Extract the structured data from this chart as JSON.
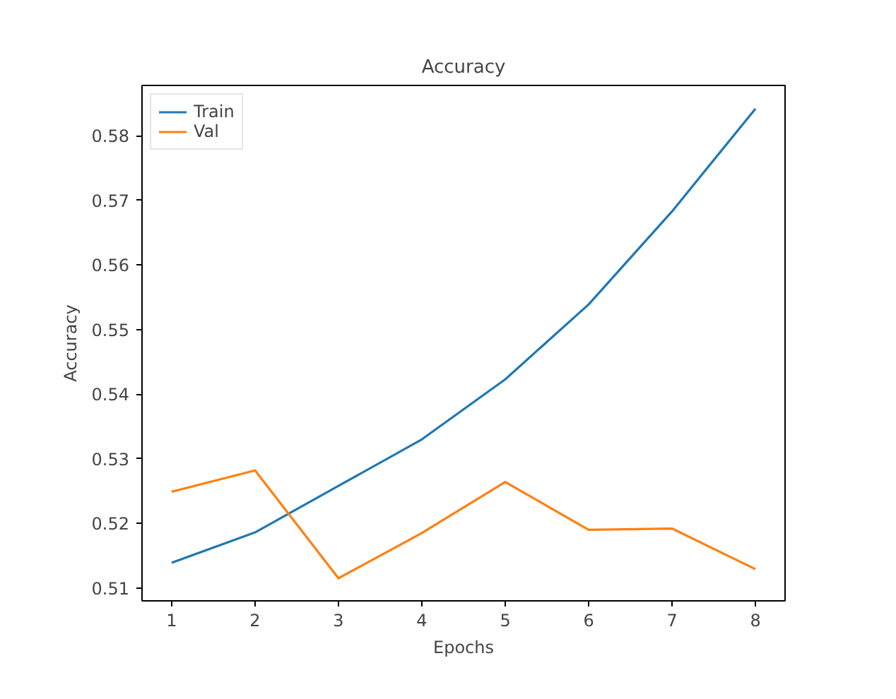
{
  "chart_data": {
    "type": "line",
    "title": "Accuracy",
    "xlabel": "Epochs",
    "ylabel": "Accuracy",
    "x": [
      1,
      2,
      3,
      4,
      5,
      6,
      7,
      8
    ],
    "series": [
      {
        "name": "Train",
        "color": "#1f77b4",
        "values": [
          0.5139,
          0.5186,
          0.5258,
          0.533,
          0.5423,
          0.5539,
          0.5683,
          0.5842
        ]
      },
      {
        "name": "Val",
        "color": "#ff7f0e",
        "values": [
          0.5249,
          0.5282,
          0.5115,
          0.5185,
          0.5264,
          0.519,
          0.5192,
          0.5129
        ]
      }
    ],
    "xlim": [
      0.645,
      8.355
    ],
    "ylim": [
      0.508,
      0.5878
    ],
    "xticks": [
      1,
      2,
      3,
      4,
      5,
      6,
      7,
      8
    ],
    "yticks": [
      0.51,
      0.52,
      0.53,
      0.54,
      0.55,
      0.56,
      0.57,
      0.58
    ],
    "grid": false,
    "legend": "top left",
    "marker": "none",
    "line_style": "solid"
  }
}
